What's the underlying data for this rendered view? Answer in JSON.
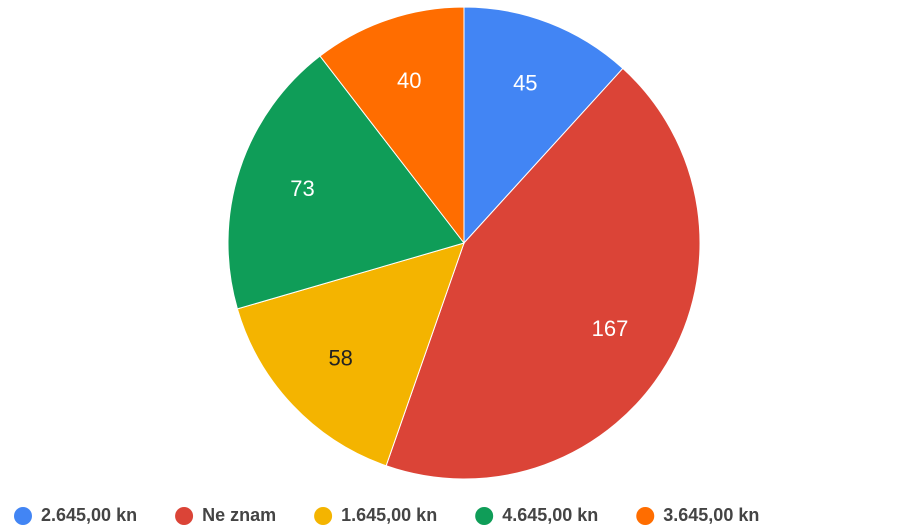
{
  "chart_data": {
    "type": "pie",
    "categories": [
      "2.645,00 kn",
      "Ne znam",
      "1.645,00 kn",
      "4.645,00 kn",
      "3.645,00 kn"
    ],
    "values": [
      45,
      167,
      58,
      73,
      40
    ],
    "colors": [
      "#4285f4",
      "#db4437",
      "#f4b400",
      "#0f9d58",
      "#ff6d00"
    ],
    "legend": "bottom"
  }
}
